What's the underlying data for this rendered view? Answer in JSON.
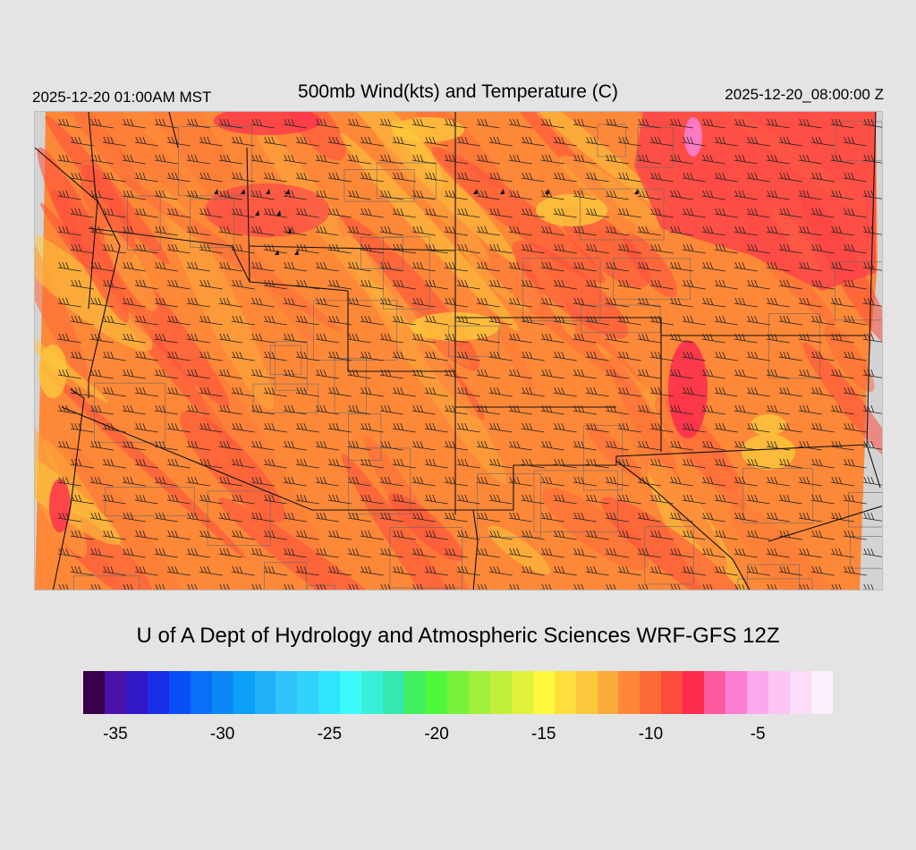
{
  "header": {
    "local_time": "2025-12-20 01:00AM MST",
    "title": "500mb Wind(kts) and Temperature (C)",
    "valid_time": "2025-12-20_08:00:00 Z"
  },
  "credit": "U of A Dept of Hydrology and Atmospheric Sciences WRF-GFS 12Z",
  "map": {
    "background_color": "#d3d3d3",
    "dominant_fill": "#fd8838",
    "field": "500mb temperature (C)",
    "overlay": "wind barbs (kts)",
    "state_boundary_color": "#000000",
    "county_boundary_color": "#555555"
  },
  "colorbar": {
    "colors": [
      "#3a0048",
      "#4a10a8",
      "#3018c8",
      "#1a2ee8",
      "#0a4ef8",
      "#0a6ef8",
      "#0a88f8",
      "#0aa0f8",
      "#20b2f8",
      "#30c4fa",
      "#30d4fa",
      "#30e4fc",
      "#3cfafc",
      "#38f0d8",
      "#34e8b0",
      "#40f060",
      "#50f83a",
      "#78f03c",
      "#a0f03c",
      "#c0f03c",
      "#e0f03c",
      "#fcf83c",
      "#fcde3c",
      "#fcc83c",
      "#fcaa3c",
      "#fd8838",
      "#fd6a38",
      "#fd4c3c",
      "#fc2c4e",
      "#fc5aa0",
      "#fc7ed0",
      "#fca8f0",
      "#fcc4f4",
      "#fcdcf8",
      "#fcf0fc"
    ],
    "tick_labels": [
      "-35",
      "-30",
      "-25",
      "-20",
      "-15",
      "-10",
      "-5"
    ],
    "tick_positions_index": [
      1,
      6,
      11,
      16,
      21,
      26,
      31
    ]
  }
}
